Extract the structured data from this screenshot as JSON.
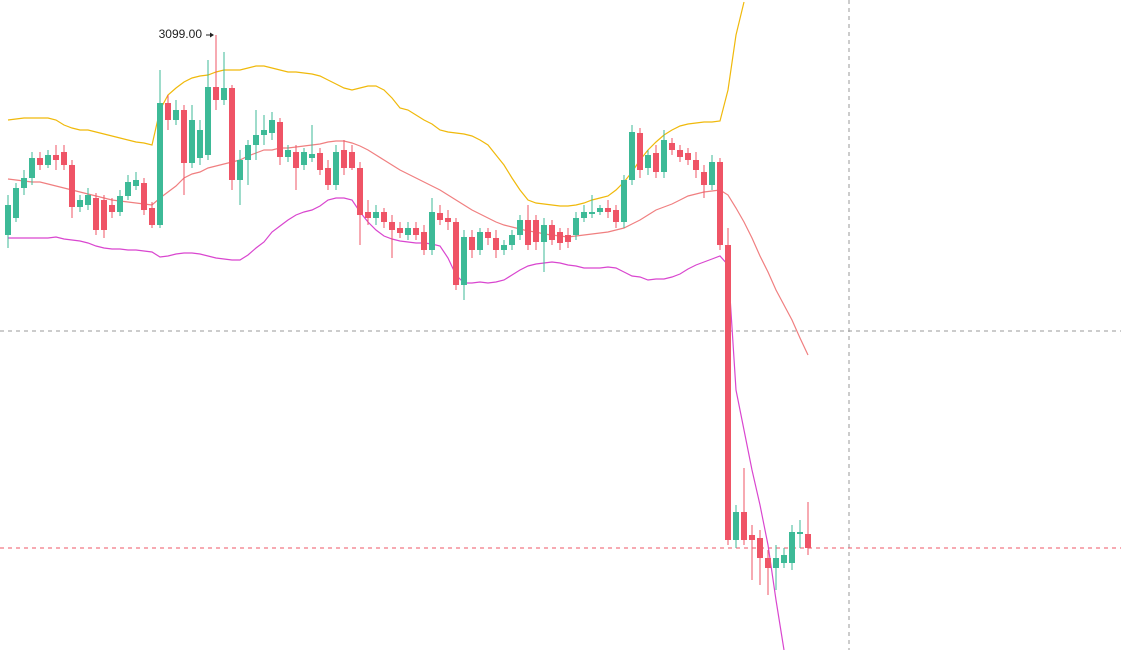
{
  "chart_data": {
    "type": "candlestick",
    "annotation": "3099.00",
    "ylim": [
      2484,
      3134
    ],
    "up_color": "#3dba97",
    "down_color": "#ef5466",
    "candles": {
      "open": [
        2899,
        2916,
        2946,
        2956,
        2976,
        2969,
        2979,
        2982,
        2969,
        2927,
        2929,
        2936,
        2934,
        2929,
        2922,
        2938,
        2948,
        2951,
        2926,
        2909,
        3031,
        3014,
        3024,
        2971,
        2976,
        2979,
        3047,
        3034,
        3046,
        2954,
        2974,
        2989,
        2999,
        3001,
        3012,
        2977,
        2982,
        2969,
        2976,
        2981,
        2966,
        2949,
        2984,
        2982,
        2966,
        2922,
        2916,
        2922,
        2912,
        2906,
        2899,
        2906,
        2902,
        2884,
        2921,
        2916,
        2912,
        2849,
        2897,
        2884,
        2902,
        2896,
        2884,
        2889,
        2899,
        2914,
        2914,
        2892,
        2909,
        2902,
        2899,
        2899,
        2916,
        2920,
        2922,
        2926,
        2924,
        2912,
        2954,
        3001,
        2966,
        2981,
        2962,
        2991,
        2984,
        2981,
        2974,
        2962,
        2949,
        2972,
        2889,
        2594,
        2622,
        2599,
        2596,
        2576,
        2566,
        2571,
        2571,
        2600,
        2600
      ],
      "high": [
        2939,
        2951,
        2964,
        2982,
        2982,
        2984,
        2989,
        2989,
        2974,
        2939,
        2946,
        2941,
        2939,
        2936,
        2944,
        2959,
        2962,
        2956,
        2932,
        3064,
        3039,
        3034,
        3029,
        3029,
        3014,
        3074,
        3099,
        3082,
        3049,
        2984,
        2994,
        3024,
        3019,
        3022,
        3016,
        2989,
        2989,
        2986,
        3009,
        2986,
        2974,
        2989,
        2994,
        2989,
        2972,
        2934,
        2929,
        2926,
        2919,
        2912,
        2912,
        2912,
        2909,
        2936,
        2929,
        2924,
        2916,
        2904,
        2904,
        2906,
        2906,
        2904,
        2894,
        2904,
        2919,
        2929,
        2919,
        2916,
        2914,
        2906,
        2906,
        2922,
        2929,
        2939,
        2929,
        2934,
        2929,
        2959,
        3009,
        3006,
        2984,
        2989,
        3004,
        2996,
        2989,
        2986,
        2982,
        2969,
        2979,
        2976,
        2906,
        2629,
        2666,
        2609,
        2604,
        2584,
        2589,
        2586,
        2609,
        2614,
        2632
      ],
      "low": [
        2886,
        2912,
        2939,
        2949,
        2964,
        2966,
        2964,
        2964,
        2916,
        2922,
        2924,
        2899,
        2896,
        2916,
        2918,
        2934,
        2944,
        2919,
        2906,
        2906,
        3004,
        3009,
        2939,
        2966,
        2969,
        2974,
        3024,
        3029,
        2944,
        2929,
        2949,
        2974,
        2989,
        2994,
        2969,
        2972,
        2944,
        2964,
        2972,
        2959,
        2944,
        2944,
        2959,
        2964,
        2889,
        2909,
        2909,
        2906,
        2876,
        2896,
        2894,
        2894,
        2879,
        2879,
        2909,
        2904,
        2844,
        2834,
        2876,
        2879,
        2889,
        2876,
        2879,
        2884,
        2894,
        2884,
        2884,
        2862,
        2889,
        2884,
        2886,
        2894,
        2912,
        2916,
        2919,
        2916,
        2906,
        2906,
        2949,
        2956,
        2959,
        2956,
        2956,
        2979,
        2972,
        2969,
        2956,
        2936,
        2944,
        2884,
        2589,
        2586,
        2589,
        2554,
        2549,
        2539,
        2544,
        2566,
        2564,
        2586,
        2579
      ],
      "close": [
        2929,
        2946,
        2956,
        2976,
        2969,
        2979,
        2974,
        2969,
        2927,
        2934,
        2939,
        2904,
        2904,
        2922,
        2938,
        2952,
        2954,
        2924,
        2909,
        3031,
        3014,
        3024,
        2971,
        3014,
        3004,
        3047,
        3034,
        3046,
        2954,
        2974,
        2989,
        2999,
        3004,
        3014,
        2977,
        2984,
        2966,
        2982,
        2980,
        2964,
        2949,
        2982,
        2966,
        2966,
        2919,
        2916,
        2922,
        2912,
        2904,
        2901,
        2906,
        2899,
        2884,
        2922,
        2914,
        2912,
        2849,
        2897,
        2884,
        2902,
        2896,
        2884,
        2889,
        2899,
        2914,
        2889,
        2892,
        2909,
        2894,
        2891,
        2892,
        2916,
        2922,
        2922,
        2926,
        2922,
        2912,
        2954,
        3002,
        2964,
        2979,
        2962,
        2994,
        2984,
        2977,
        2974,
        2964,
        2949,
        2972,
        2889,
        2594,
        2622,
        2594,
        2594,
        2576,
        2566,
        2576,
        2579,
        2602,
        2602,
        2586
      ]
    },
    "bands": [
      {
        "color": "#f0b90b",
        "values": [
          3014,
          3015,
          3016,
          3016,
          3016,
          3016,
          3014,
          3009,
          3006,
          3004,
          3004,
          3002,
          3000,
          2998,
          2996,
          2994,
          2992,
          2991,
          2989,
          3024,
          3039,
          3046,
          3052,
          3056,
          3058,
          3059,
          3062,
          3064,
          3064,
          3064,
          3066,
          3068,
          3068,
          3066,
          3064,
          3062,
          3062,
          3061,
          3060,
          3058,
          3054,
          3050,
          3046,
          3044,
          3046,
          3048,
          3048,
          3044,
          3036,
          3026,
          3024,
          3019,
          3014,
          3010,
          3004,
          3002,
          3001,
          3000,
          2998,
          2994,
          2989,
          2979,
          2969,
          2956,
          2944,
          2934,
          2931,
          2930,
          2929,
          2928,
          2928,
          2929,
          2931,
          2934,
          2936,
          2938,
          2944,
          2952,
          2962,
          2974,
          2984,
          2992,
          2999,
          3004,
          3008,
          3010,
          3011,
          3012,
          3012,
          3013,
          3044,
          3099,
          3132,
          null,
          null,
          null,
          null,
          null,
          null,
          null,
          null
        ]
      },
      {
        "color": "#f07f80",
        "values": [
          2955,
          2954,
          2953,
          2952,
          2952,
          2950,
          2948,
          2946,
          2944,
          2942,
          2940,
          2938,
          2936,
          2934,
          2933,
          2932,
          2931,
          2930,
          2929,
          2936,
          2942,
          2948,
          2956,
          2960,
          2962,
          2966,
          2968,
          2970,
          2972,
          2974,
          2978,
          2981,
          2984,
          2984,
          2986,
          2986,
          2987,
          2988,
          2989,
          2990,
          2992,
          2993,
          2993,
          2991,
          2988,
          2984,
          2979,
          2974,
          2969,
          2964,
          2960,
          2956,
          2952,
          2948,
          2944,
          2939,
          2934,
          2929,
          2924,
          2920,
          2916,
          2912,
          2909,
          2907,
          2905,
          2903,
          2902,
          2900,
          2899,
          2898,
          2897,
          2898,
          2899,
          2900,
          2901,
          2902,
          2904,
          2906,
          2910,
          2914,
          2919,
          2924,
          2927,
          2930,
          2934,
          2938,
          2940,
          2942,
          2943,
          2944,
          2939,
          2926,
          2912,
          2896,
          2878,
          2862,
          2844,
          2829,
          2814,
          2796,
          2779
        ]
      },
      {
        "color": "#d946cf",
        "values": [
          2896,
          2896,
          2896,
          2896,
          2896,
          2896,
          2897,
          2895,
          2894,
          2893,
          2891,
          2888,
          2886,
          2885,
          2885,
          2884,
          2884,
          2883,
          2882,
          2877,
          2878,
          2880,
          2881,
          2881,
          2880,
          2878,
          2876,
          2875,
          2874,
          2874,
          2879,
          2886,
          2892,
          2902,
          2908,
          2914,
          2919,
          2922,
          2924,
          2928,
          2934,
          2936,
          2936,
          2934,
          2922,
          2912,
          2904,
          2898,
          2895,
          2893,
          2892,
          2891,
          2891,
          2890,
          2888,
          2876,
          2859,
          2851,
          2851,
          2852,
          2851,
          2852,
          2854,
          2859,
          2864,
          2868,
          2870,
          2871,
          2872,
          2871,
          2869,
          2868,
          2866,
          2866,
          2866,
          2867,
          2866,
          2862,
          2858,
          2857,
          2854,
          2855,
          2855,
          2857,
          2860,
          2865,
          2869,
          2872,
          2875,
          2878,
          2869,
          2744,
          2704,
          2664,
          2629,
          2589,
          2534,
          2484,
          null,
          null,
          null
        ]
      }
    ]
  }
}
